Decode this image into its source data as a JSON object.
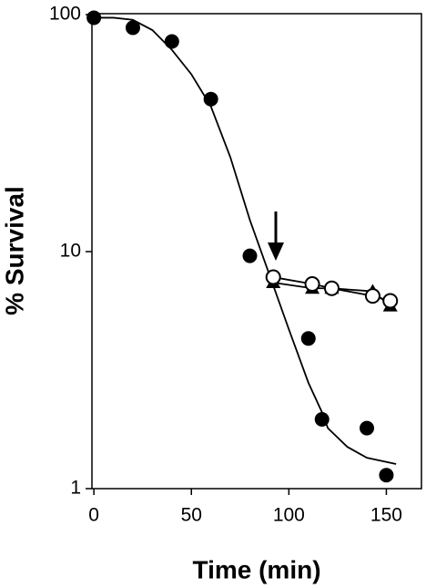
{
  "chart_data": {
    "type": "scatter",
    "xlabel": "Time (min)",
    "ylabel": "% Survival",
    "xlim": [
      -1,
      168
    ],
    "xticks": [
      0,
      50,
      100,
      150
    ],
    "ylim": [
      1,
      100
    ],
    "yticks": [
      1,
      10,
      100
    ],
    "log_y": true,
    "series": [
      {
        "marker": "none",
        "line": true,
        "color": "#000000",
        "x": [
          0,
          10,
          20,
          30,
          40,
          50,
          60,
          70,
          80,
          90,
          100,
          110,
          117,
          120,
          130,
          140,
          155
        ],
        "values": [
          97,
          97,
          95,
          86,
          71,
          56,
          41,
          25,
          13.6,
          8,
          4.7,
          2.8,
          2.1,
          1.8,
          1.5,
          1.35,
          1.27
        ]
      },
      {
        "marker": "circle",
        "line": false,
        "color": "#000000",
        "x": [
          0,
          20,
          40,
          60,
          80,
          110,
          117,
          140,
          150
        ],
        "values": [
          97,
          88,
          77,
          44,
          9.6,
          4.3,
          1.96,
          1.8,
          1.14
        ]
      },
      {
        "marker": "triangle",
        "line": true,
        "color": "#000000",
        "x": [
          92,
          112,
          122,
          143,
          152
        ],
        "values": [
          7.4,
          7.0,
          7.0,
          6.8,
          5.9
        ]
      },
      {
        "marker": "open-circle",
        "line": true,
        "color": "#000000",
        "x": [
          92,
          112,
          122,
          143,
          152
        ],
        "values": [
          7.8,
          7.3,
          7.0,
          6.5,
          6.2
        ]
      }
    ]
  }
}
